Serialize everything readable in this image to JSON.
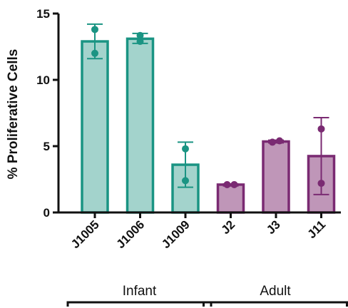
{
  "chart_data": {
    "type": "bar",
    "ylabel": "% Proliferative Cells",
    "xlabel": "",
    "ylim": [
      0,
      15
    ],
    "yticks": [
      0,
      5,
      10,
      15
    ],
    "grid": false,
    "categories": [
      "J1005",
      "J1006",
      "J1009",
      "J2",
      "J3",
      "J11"
    ],
    "values": [
      12.9,
      13.1,
      3.6,
      2.1,
      5.35,
      4.25
    ],
    "error_high": [
      14.2,
      13.5,
      5.3,
      2.15,
      5.45,
      7.15
    ],
    "error_low": [
      11.6,
      12.75,
      1.9,
      2.0,
      5.25,
      1.35
    ],
    "points": [
      [
        13.8,
        12.0
      ],
      [
        13.35,
        12.9
      ],
      [
        4.8,
        2.4
      ],
      [
        2.1,
        2.1
      ],
      [
        5.3,
        5.4
      ],
      [
        6.3,
        2.2
      ]
    ],
    "groups": [
      {
        "label": "Infant",
        "members": [
          "J1005",
          "J1006",
          "J1009"
        ]
      },
      {
        "label": "Adult",
        "members": [
          "J2",
          "J3",
          "J11"
        ]
      }
    ],
    "colors": {
      "infant_fill": "#a3d3cc",
      "infant_stroke": "#1a9483",
      "adult_fill": "#bf96b8",
      "adult_stroke": "#7a2a72",
      "axis": "#111111"
    }
  }
}
